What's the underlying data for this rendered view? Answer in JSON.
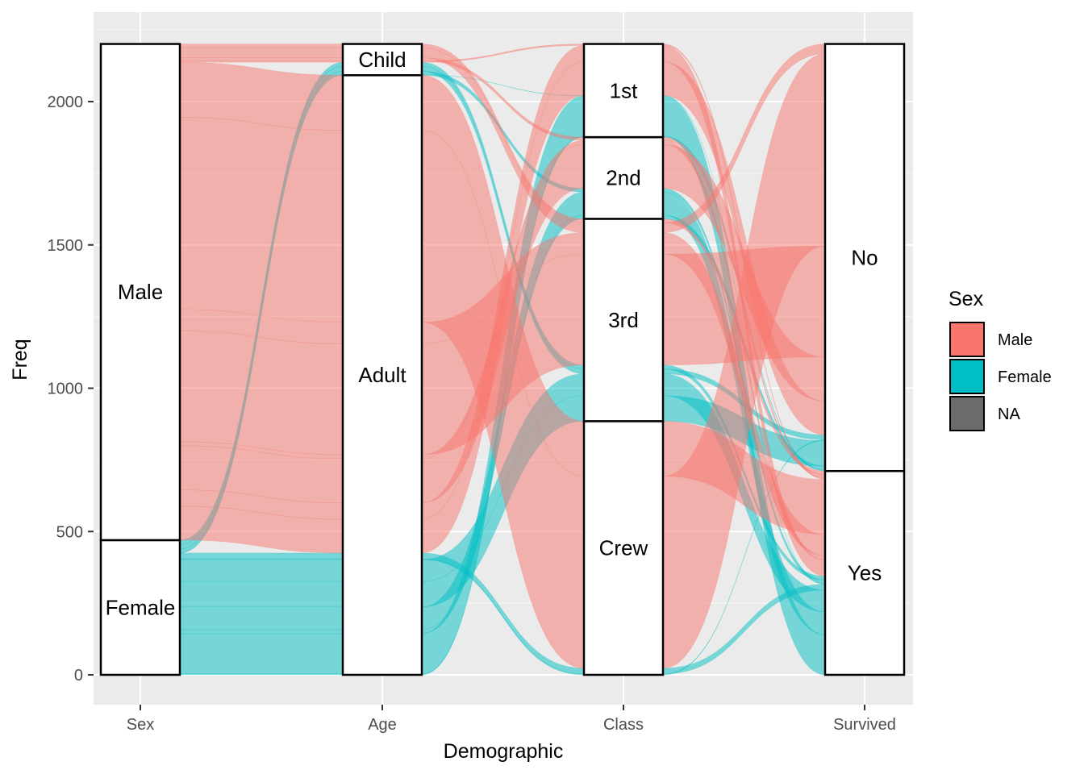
{
  "chart_data": {
    "type": "alluvial",
    "xlabel": "Demographic",
    "ylabel": "Freq",
    "ylim": [
      -100,
      2300
    ],
    "y_ticks": [
      0,
      500,
      1000,
      1500,
      2000
    ],
    "axes": [
      "Sex",
      "Age",
      "Class",
      "Survived"
    ],
    "grid": true,
    "legend": {
      "title": "Sex",
      "placement": "right",
      "entries": [
        {
          "label": "Male",
          "color": "#F8766D"
        },
        {
          "label": "Female",
          "color": "#00BFC4"
        },
        {
          "label": "NA",
          "color": "#6B6B6B"
        }
      ]
    },
    "strata": {
      "Sex": [
        {
          "label": "Female",
          "value": 470
        },
        {
          "label": "Male",
          "value": 1731
        }
      ],
      "Age": [
        {
          "label": "Adult",
          "value": 2092
        },
        {
          "label": "Child",
          "value": 109
        }
      ],
      "Class": [
        {
          "label": "Crew",
          "value": 885
        },
        {
          "label": "3rd",
          "value": 706
        },
        {
          "label": "2nd",
          "value": 285
        },
        {
          "label": "1st",
          "value": 325
        }
      ],
      "Survived": [
        {
          "label": "Yes",
          "value": 711
        },
        {
          "label": "No",
          "value": 1490
        }
      ]
    },
    "flows": [
      {
        "Sex": "Male",
        "Age": "Child",
        "Class": "1st",
        "Survived": "Yes",
        "value": 5
      },
      {
        "Sex": "Male",
        "Age": "Child",
        "Class": "2nd",
        "Survived": "Yes",
        "value": 11
      },
      {
        "Sex": "Male",
        "Age": "Child",
        "Class": "3rd",
        "Survived": "No",
        "value": 35
      },
      {
        "Sex": "Male",
        "Age": "Child",
        "Class": "3rd",
        "Survived": "Yes",
        "value": 13
      },
      {
        "Sex": "Female",
        "Age": "Child",
        "Class": "1st",
        "Survived": "Yes",
        "value": 1
      },
      {
        "Sex": "Female",
        "Age": "Child",
        "Class": "2nd",
        "Survived": "Yes",
        "value": 13
      },
      {
        "Sex": "Female",
        "Age": "Child",
        "Class": "3rd",
        "Survived": "No",
        "value": 17
      },
      {
        "Sex": "Female",
        "Age": "Child",
        "Class": "3rd",
        "Survived": "Yes",
        "value": 14
      },
      {
        "Sex": "Male",
        "Age": "Adult",
        "Class": "1st",
        "Survived": "No",
        "value": 118
      },
      {
        "Sex": "Male",
        "Age": "Adult",
        "Class": "1st",
        "Survived": "Yes",
        "value": 57
      },
      {
        "Sex": "Male",
        "Age": "Adult",
        "Class": "2nd",
        "Survived": "No",
        "value": 154
      },
      {
        "Sex": "Male",
        "Age": "Adult",
        "Class": "2nd",
        "Survived": "Yes",
        "value": 14
      },
      {
        "Sex": "Male",
        "Age": "Adult",
        "Class": "3rd",
        "Survived": "No",
        "value": 387
      },
      {
        "Sex": "Male",
        "Age": "Adult",
        "Class": "3rd",
        "Survived": "Yes",
        "value": 75
      },
      {
        "Sex": "Male",
        "Age": "Adult",
        "Class": "Crew",
        "Survived": "No",
        "value": 670
      },
      {
        "Sex": "Male",
        "Age": "Adult",
        "Class": "Crew",
        "Survived": "Yes",
        "value": 192
      },
      {
        "Sex": "Female",
        "Age": "Adult",
        "Class": "1st",
        "Survived": "No",
        "value": 4
      },
      {
        "Sex": "Female",
        "Age": "Adult",
        "Class": "1st",
        "Survived": "Yes",
        "value": 140
      },
      {
        "Sex": "Female",
        "Age": "Adult",
        "Class": "2nd",
        "Survived": "No",
        "value": 13
      },
      {
        "Sex": "Female",
        "Age": "Adult",
        "Class": "2nd",
        "Survived": "Yes",
        "value": 80
      },
      {
        "Sex": "Female",
        "Age": "Adult",
        "Class": "3rd",
        "Survived": "No",
        "value": 89
      },
      {
        "Sex": "Female",
        "Age": "Adult",
        "Class": "3rd",
        "Survived": "Yes",
        "value": 76
      },
      {
        "Sex": "Female",
        "Age": "Adult",
        "Class": "Crew",
        "Survived": "No",
        "value": 3
      },
      {
        "Sex": "Female",
        "Age": "Adult",
        "Class": "Crew",
        "Survived": "Yes",
        "value": 20
      }
    ]
  }
}
